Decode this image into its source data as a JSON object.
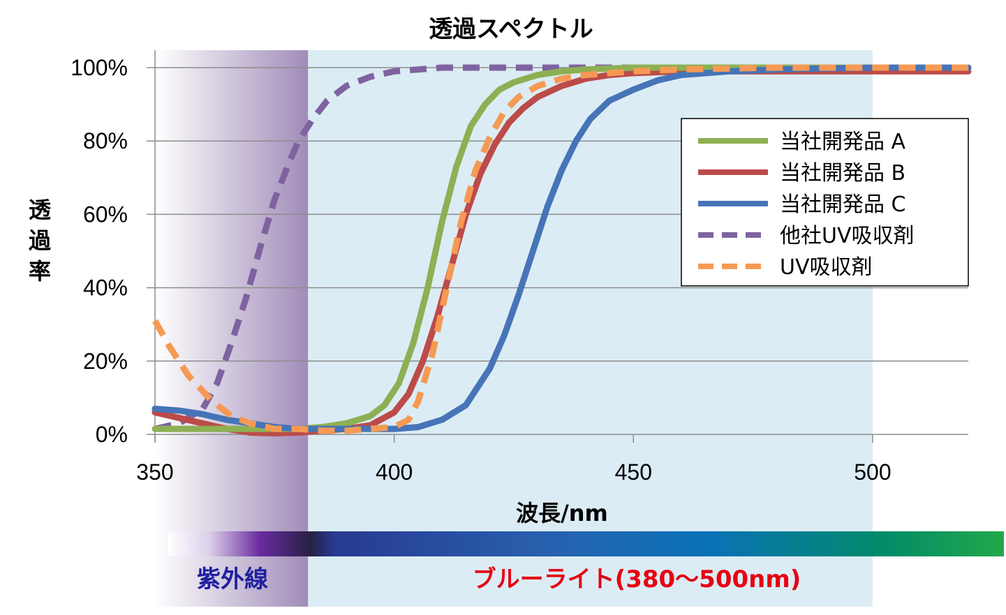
{
  "chart_data": {
    "type": "line",
    "title": "透過スペクトル",
    "xlabel": "波長/nm",
    "ylabel": "透過率",
    "xlim": [
      350,
      520
    ],
    "ylim": [
      0,
      100
    ],
    "xticks": [
      "350",
      "400",
      "450",
      "500"
    ],
    "yticks": [
      "0%",
      "20%",
      "40%",
      "60%",
      "80%",
      "100%"
    ],
    "grid": "horizontal",
    "legend": "right",
    "regions": [
      {
        "label": "紫外線",
        "range": [
          350,
          382
        ]
      },
      {
        "label": "ブルーライト(380〜500nm)",
        "range": [
          382,
          500
        ]
      }
    ],
    "series": [
      {
        "name": "当社開発品 A",
        "color": "#8db054",
        "style": "solid",
        "x": [
          350,
          360,
          370,
          380,
          385,
          390,
          395,
          398,
          401,
          404,
          407,
          410,
          413,
          416,
          419,
          422,
          425,
          430,
          435,
          440,
          450,
          460,
          470,
          480,
          500,
          520
        ],
        "y": [
          1.5,
          1.5,
          1.5,
          1.5,
          2,
          3,
          5,
          8,
          14,
          25,
          40,
          58,
          73,
          84,
          90,
          94,
          96,
          98,
          99,
          99.5,
          100,
          100,
          100,
          100,
          100,
          100
        ]
      },
      {
        "name": "当社開発品 B",
        "color": "#bc4b49",
        "style": "solid",
        "x": [
          350,
          355,
          360,
          365,
          370,
          375,
          380,
          385,
          390,
          395,
          400,
          403,
          406,
          409,
          412,
          415,
          418,
          421,
          424,
          427,
          430,
          435,
          440,
          445,
          450,
          460,
          480,
          500,
          520
        ],
        "y": [
          6,
          4.5,
          3,
          1.5,
          0.5,
          0.3,
          0.5,
          1,
          1.5,
          2.5,
          6,
          11,
          20,
          32,
          46,
          60,
          71,
          79,
          85,
          89,
          92,
          95,
          97,
          98,
          98.5,
          99,
          99,
          99,
          99
        ]
      },
      {
        "name": "当社開発品 C",
        "color": "#4674b8",
        "style": "solid",
        "x": [
          350,
          355,
          360,
          365,
          370,
          375,
          380,
          390,
          400,
          405,
          410,
          415,
          420,
          423,
          426,
          429,
          432,
          435,
          438,
          441,
          445,
          450,
          455,
          460,
          470,
          480,
          500,
          520
        ],
        "y": [
          7,
          6.5,
          5.5,
          4,
          3,
          2,
          1.5,
          1.5,
          1.5,
          2,
          4,
          8,
          18,
          27,
          38,
          50,
          62,
          72,
          80,
          86,
          91,
          94,
          96.5,
          98,
          99,
          99.5,
          100,
          100
        ]
      },
      {
        "name": "他社UV吸収剤",
        "color": "#7e63a0",
        "style": "dashed",
        "x": [
          350,
          355,
          360,
          363,
          366,
          369,
          372,
          375,
          378,
          380,
          383,
          386,
          390,
          395,
          400,
          410,
          420,
          430,
          440,
          520
        ],
        "y": [
          1.5,
          3,
          7,
          14,
          25,
          37,
          51,
          64,
          74,
          80,
          86,
          91,
          95,
          97.5,
          99,
          100,
          100,
          100,
          100,
          100
        ]
      },
      {
        "name": "UV吸収剤",
        "color": "#f59a54",
        "style": "dashed",
        "x": [
          350,
          353,
          357,
          362,
          366,
          370,
          375,
          380,
          385,
          390,
          395,
          400,
          403,
          405,
          408,
          411,
          414,
          417,
          420,
          423,
          426,
          430,
          435,
          440,
          450,
          460,
          480,
          500,
          520
        ],
        "y": [
          31,
          24,
          16,
          9,
          5,
          3,
          1.5,
          1.5,
          1,
          1,
          1.5,
          2,
          4,
          9,
          22,
          40,
          58,
          72,
          81,
          88,
          92,
          95,
          97,
          98,
          99,
          99.5,
          100,
          100,
          100
        ]
      }
    ]
  }
}
